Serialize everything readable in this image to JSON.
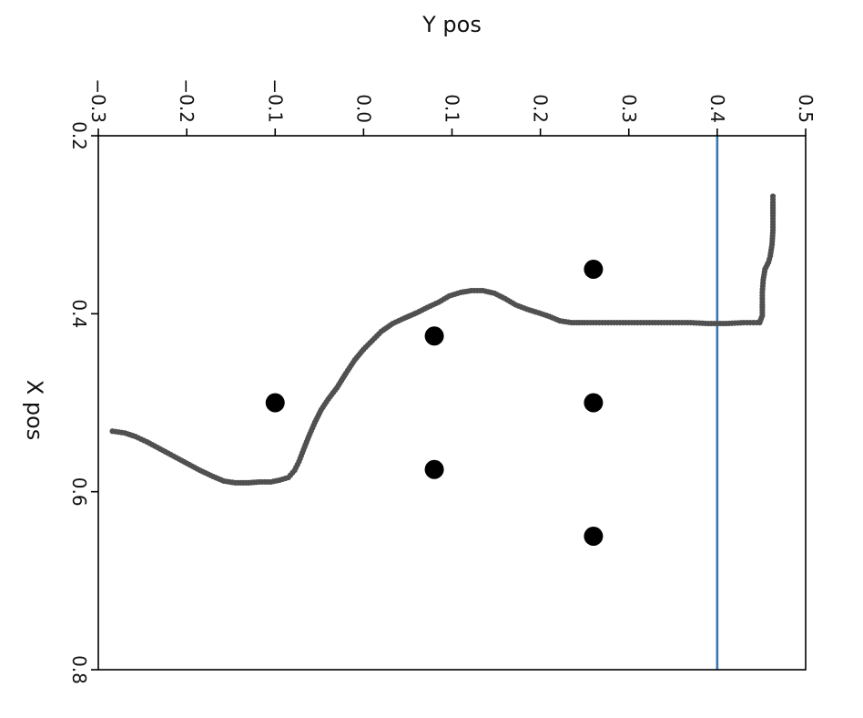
{
  "chart_data": {
    "type": "scatter",
    "title": "",
    "xlabel": "Y pos",
    "ylabel": "X pos",
    "x_axis_position": "top",
    "xlim": [
      -0.3,
      0.5
    ],
    "ylim": [
      0.8,
      0.2
    ],
    "y_inverted": true,
    "xticks": [
      "−0.3",
      "−0.2",
      "−0.1",
      "0.0",
      "0.1",
      "0.2",
      "0.3",
      "0.4",
      "0.5"
    ],
    "yticks": [
      "0.2",
      "0.4",
      "0.6",
      "0.8"
    ],
    "grid": false,
    "legend": "none",
    "reference_line": {
      "orientation": "vertical",
      "x": 0.4,
      "color": "#3b75af"
    },
    "series": [
      {
        "marker": "small-dot",
        "color": "#505050",
        "points": [
          [
            -0.284,
            0.532
          ],
          [
            -0.27,
            0.534
          ],
          [
            -0.258,
            0.538
          ],
          [
            -0.245,
            0.544
          ],
          [
            -0.23,
            0.552
          ],
          [
            -0.215,
            0.56
          ],
          [
            -0.2,
            0.568
          ],
          [
            -0.185,
            0.576
          ],
          [
            -0.17,
            0.583
          ],
          [
            -0.158,
            0.588
          ],
          [
            -0.145,
            0.59
          ],
          [
            -0.13,
            0.59
          ],
          [
            -0.118,
            0.589
          ],
          [
            -0.105,
            0.589
          ],
          [
            -0.095,
            0.587
          ],
          [
            -0.085,
            0.584
          ],
          [
            -0.078,
            0.576
          ],
          [
            -0.073,
            0.566
          ],
          [
            -0.068,
            0.553
          ],
          [
            -0.062,
            0.538
          ],
          [
            -0.055,
            0.522
          ],
          [
            -0.048,
            0.508
          ],
          [
            -0.04,
            0.496
          ],
          [
            -0.03,
            0.483
          ],
          [
            -0.02,
            0.467
          ],
          [
            -0.01,
            0.452
          ],
          [
            0.0,
            0.44
          ],
          [
            0.01,
            0.43
          ],
          [
            0.02,
            0.42
          ],
          [
            0.033,
            0.411
          ],
          [
            0.046,
            0.405
          ],
          [
            0.06,
            0.399
          ],
          [
            0.072,
            0.393
          ],
          [
            0.085,
            0.387
          ],
          [
            0.097,
            0.38
          ],
          [
            0.11,
            0.376
          ],
          [
            0.122,
            0.374
          ],
          [
            0.135,
            0.374
          ],
          [
            0.148,
            0.377
          ],
          [
            0.16,
            0.383
          ],
          [
            0.172,
            0.39
          ],
          [
            0.185,
            0.395
          ],
          [
            0.198,
            0.399
          ],
          [
            0.21,
            0.403
          ],
          [
            0.222,
            0.408
          ],
          [
            0.235,
            0.41
          ],
          [
            0.25,
            0.41
          ],
          [
            0.27,
            0.41
          ],
          [
            0.29,
            0.41
          ],
          [
            0.31,
            0.41
          ],
          [
            0.33,
            0.41
          ],
          [
            0.35,
            0.41
          ],
          [
            0.37,
            0.41
          ],
          [
            0.39,
            0.411
          ],
          [
            0.41,
            0.411
          ],
          [
            0.43,
            0.41
          ],
          [
            0.448,
            0.41
          ],
          [
            0.451,
            0.402
          ],
          [
            0.451,
            0.39
          ],
          [
            0.451,
            0.376
          ],
          [
            0.452,
            0.362
          ],
          [
            0.454,
            0.35
          ],
          [
            0.458,
            0.342
          ],
          [
            0.46,
            0.335
          ],
          [
            0.462,
            0.322
          ],
          [
            0.463,
            0.306
          ],
          [
            0.463,
            0.29
          ],
          [
            0.463,
            0.275
          ],
          [
            0.463,
            0.268
          ]
        ]
      },
      {
        "marker": "large-dot",
        "color": "#000000",
        "points": [
          [
            0.26,
            0.35
          ],
          [
            0.08,
            0.425
          ],
          [
            -0.1,
            0.5
          ],
          [
            0.26,
            0.5
          ],
          [
            0.08,
            0.575
          ],
          [
            0.26,
            0.65
          ]
        ]
      }
    ]
  }
}
